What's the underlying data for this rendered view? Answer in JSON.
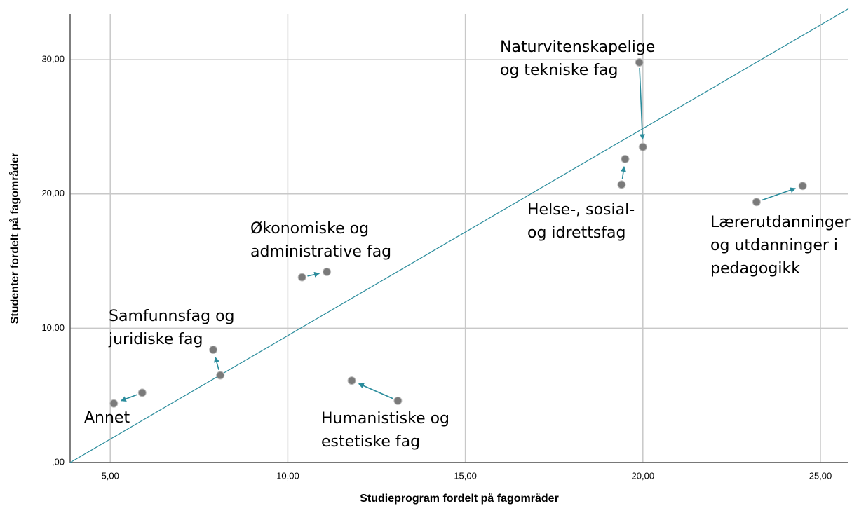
{
  "chart_data": {
    "type": "scatter",
    "x_label": "Studieprogram fordelt på fagområder",
    "y_label": "Studenter fordelt på fagområder",
    "xlim": [
      3.87,
      25.79
    ],
    "ylim": [
      0,
      33.4
    ],
    "xticks": [
      {
        "value": 5,
        "label": "5,00"
      },
      {
        "value": 10,
        "label": "10,00"
      },
      {
        "value": 15,
        "label": "15,00"
      },
      {
        "value": 20,
        "label": "20,00"
      },
      {
        "value": 25,
        "label": "25,00"
      }
    ],
    "yticks": [
      {
        "value": 0,
        "label": ",00"
      },
      {
        "value": 10,
        "label": "10,00"
      },
      {
        "value": 20,
        "label": "20,00"
      },
      {
        "value": 30,
        "label": "30,00"
      }
    ],
    "grid": true,
    "point_color": "#7a7a7a",
    "arrow_color": "#2a8c9c",
    "line_color": "#2a8c9c",
    "reference_line": {
      "x": [
        3.87,
        25.79
      ],
      "y": [
        0,
        33.8
      ]
    },
    "series": [
      {
        "name": [
          "Annet"
        ],
        "x": [
          5.9,
          5.1
        ],
        "y": [
          5.2,
          4.4
        ]
      },
      {
        "name": [
          "Samfunnsfag og",
          "juridiske fag"
        ],
        "x": [
          8.1,
          7.9
        ],
        "y": [
          6.5,
          8.4
        ]
      },
      {
        "name": [
          "Økonomiske og",
          "administrative fag"
        ],
        "x": [
          10.4,
          11.1
        ],
        "y": [
          13.8,
          14.2
        ]
      },
      {
        "name": [
          "Humanistiske og",
          "estetiske fag"
        ],
        "x": [
          13.1,
          11.8
        ],
        "y": [
          4.6,
          6.1
        ]
      },
      {
        "name": [
          "Helse-, sosial-",
          "og idrettsfag"
        ],
        "x": [
          19.4,
          19.5
        ],
        "y": [
          20.7,
          22.6
        ]
      },
      {
        "name": [
          "Naturvitenskapelige",
          "og tekniske fag"
        ],
        "x": [
          19.9,
          20.0
        ],
        "y": [
          29.8,
          23.5
        ]
      },
      {
        "name": [
          "Lærerutdanninger",
          "og utdanninger i",
          "pedagogikk"
        ],
        "x": [
          23.2,
          24.5
        ],
        "y": [
          19.4,
          20.6
        ]
      }
    ]
  }
}
